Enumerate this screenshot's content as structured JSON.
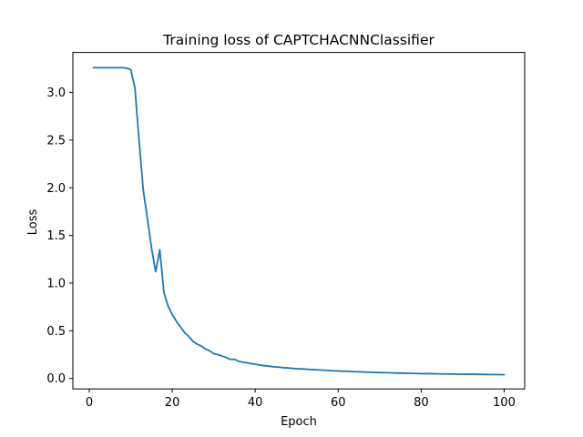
{
  "chart_data": {
    "type": "line",
    "title": "Training loss of CAPTCHACNNClassifier",
    "xlabel": "Epoch",
    "ylabel": "Loss",
    "xlim": [
      -3.95,
      104.95
    ],
    "ylim": [
      -0.11,
      3.42
    ],
    "x_ticks": [
      0,
      20,
      40,
      60,
      80,
      100
    ],
    "x_tick_labels": [
      "0",
      "20",
      "40",
      "60",
      "80",
      "100"
    ],
    "y_ticks": [
      0.0,
      0.5,
      1.0,
      1.5,
      2.0,
      2.5,
      3.0
    ],
    "y_tick_labels": [
      "0.0",
      "0.5",
      "1.0",
      "1.5",
      "2.0",
      "2.5",
      "3.0"
    ],
    "grid": false,
    "series": [
      {
        "color": "#1f77b4",
        "x": [
          1,
          2,
          3,
          4,
          5,
          6,
          7,
          8,
          9,
          10,
          11,
          12,
          13,
          14,
          15,
          16,
          17,
          18,
          19,
          20,
          21,
          22,
          23,
          24,
          25,
          26,
          27,
          28,
          29,
          30,
          31,
          32,
          33,
          34,
          35,
          36,
          37,
          38,
          39,
          40,
          41,
          42,
          43,
          44,
          45,
          46,
          47,
          48,
          49,
          50,
          51,
          52,
          53,
          54,
          55,
          56,
          57,
          58,
          59,
          60,
          61,
          62,
          63,
          64,
          65,
          66,
          67,
          68,
          69,
          70,
          71,
          72,
          73,
          74,
          75,
          76,
          77,
          78,
          79,
          80,
          81,
          82,
          83,
          84,
          85,
          86,
          87,
          88,
          89,
          90,
          91,
          92,
          93,
          94,
          95,
          96,
          97,
          98,
          99,
          100
        ],
        "values": [
          3.26,
          3.26,
          3.26,
          3.26,
          3.26,
          3.26,
          3.26,
          3.26,
          3.255,
          3.24,
          3.05,
          2.5,
          1.98,
          1.68,
          1.37,
          1.12,
          1.35,
          0.9,
          0.76,
          0.67,
          0.6,
          0.54,
          0.48,
          0.44,
          0.39,
          0.36,
          0.34,
          0.31,
          0.29,
          0.26,
          0.25,
          0.235,
          0.22,
          0.2,
          0.2,
          0.18,
          0.17,
          0.165,
          0.155,
          0.15,
          0.14,
          0.135,
          0.13,
          0.125,
          0.12,
          0.118,
          0.112,
          0.11,
          0.105,
          0.102,
          0.1,
          0.098,
          0.095,
          0.092,
          0.09,
          0.088,
          0.085,
          0.083,
          0.08,
          0.078,
          0.076,
          0.075,
          0.073,
          0.071,
          0.07,
          0.068,
          0.066,
          0.065,
          0.063,
          0.062,
          0.06,
          0.06,
          0.058,
          0.057,
          0.056,
          0.055,
          0.054,
          0.053,
          0.052,
          0.051,
          0.05,
          0.05,
          0.049,
          0.048,
          0.047,
          0.047,
          0.046,
          0.046,
          0.045,
          0.045,
          0.044,
          0.044,
          0.043,
          0.043,
          0.042,
          0.042,
          0.041,
          0.041,
          0.04,
          0.04
        ]
      }
    ]
  }
}
